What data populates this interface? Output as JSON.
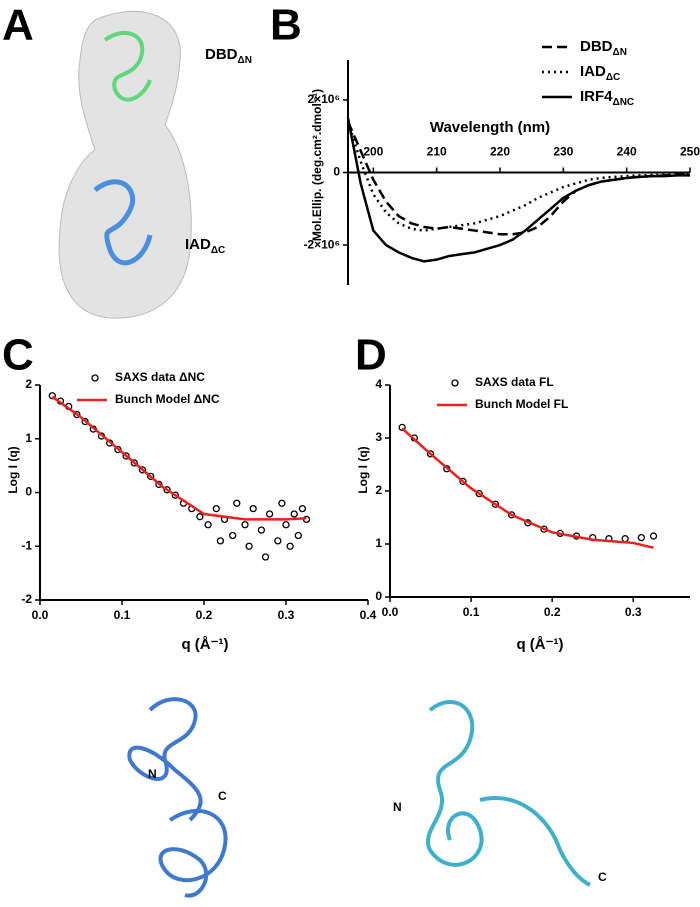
{
  "panel_letters": [
    "A",
    "B",
    "C",
    "D"
  ],
  "panel_a_labels": [
    {
      "text": "DBD",
      "sub": "ΔN"
    },
    {
      "text": "IAD",
      "sub": "ΔC"
    }
  ],
  "structure_labels": {
    "C": [
      "N",
      "C"
    ],
    "D": [
      "N",
      "C"
    ]
  },
  "chart_data": [
    {
      "type": "line",
      "x_label": "Wavelength (nm)",
      "y_label": "Mol.Ellip. (deg.cm².dmol⁻¹)",
      "xlim": [
        196,
        250
      ],
      "xticks": [
        200,
        210,
        220,
        230,
        240,
        250
      ],
      "ylim": [
        -3100000,
        3100000
      ],
      "yticks": [
        {
          "value": 2000000,
          "label": "2×10⁶"
        },
        0,
        {
          "value": -2000000,
          "label": "-2×10⁶"
        }
      ],
      "legend": "top-right",
      "series": [
        {
          "name": "DBD",
          "name_sub": "ΔN",
          "color": "#000000",
          "style": "dashed",
          "x": [
            196,
            198,
            200,
            202,
            204,
            206,
            208,
            210,
            212,
            214,
            216,
            218,
            220,
            222,
            224,
            226,
            228,
            230,
            232,
            234,
            236,
            238,
            240,
            242,
            244,
            246,
            248,
            250
          ],
          "values": [
            1400000.0,
            600000.0,
            -200000.0,
            -800000.0,
            -1200000.0,
            -1400000.0,
            -1500000.0,
            -1550000.0,
            -1500000.0,
            -1550000.0,
            -1600000.0,
            -1650000.0,
            -1700000.0,
            -1700000.0,
            -1650000.0,
            -1500000.0,
            -1200000.0,
            -800000.0,
            -500000.0,
            -350000.0,
            -250000.0,
            -200000.0,
            -150000.0,
            -120000.0,
            -100000.0,
            -80000.0,
            -60000.0,
            -50000.0
          ]
        },
        {
          "name": "IAD",
          "name_sub": "ΔC",
          "color": "#000000",
          "style": "dotted",
          "x": [
            196,
            198,
            200,
            202,
            204,
            206,
            208,
            210,
            212,
            214,
            216,
            218,
            220,
            222,
            224,
            226,
            228,
            230,
            232,
            234,
            236,
            238,
            240,
            242,
            244,
            246,
            248,
            250
          ],
          "values": [
            1400000.0,
            300000.0,
            -600000.0,
            -1100000.0,
            -1400000.0,
            -1550000.0,
            -1600000.0,
            -1550000.0,
            -1500000.0,
            -1450000.0,
            -1400000.0,
            -1300000.0,
            -1200000.0,
            -1050000.0,
            -900000.0,
            -700000.0,
            -550000.0,
            -400000.0,
            -300000.0,
            -200000.0,
            -150000.0,
            -120000.0,
            -100000.0,
            -80000.0,
            -70000.0,
            -60000.0,
            -50000.0,
            -50000.0
          ]
        },
        {
          "name": "IRF4",
          "name_sub": "ΔNC",
          "color": "#000000",
          "style": "solid",
          "x": [
            196,
            198,
            200,
            202,
            204,
            206,
            208,
            210,
            212,
            214,
            216,
            218,
            220,
            222,
            224,
            226,
            228,
            230,
            232,
            234,
            236,
            238,
            240,
            242,
            244,
            246,
            248,
            250
          ],
          "values": [
            1500000.0,
            -300000.0,
            -1600000.0,
            -2000000.0,
            -2200000.0,
            -2350000.0,
            -2450000.0,
            -2400000.0,
            -2300000.0,
            -2250000.0,
            -2200000.0,
            -2100000.0,
            -2000000.0,
            -1850000.0,
            -1600000.0,
            -1300000.0,
            -1000000.0,
            -700000.0,
            -500000.0,
            -350000.0,
            -250000.0,
            -200000.0,
            -150000.0,
            -120000.0,
            -100000.0,
            -100000.0,
            -80000.0,
            -80000.0
          ]
        }
      ]
    },
    {
      "type": "scatter",
      "x_label": "q (Å⁻¹)",
      "y_label": "Log I (q)",
      "xlim": [
        0,
        0.4
      ],
      "xticks": [
        {
          "value": 0,
          "label": "0.0"
        },
        0.1,
        0.2,
        0.3,
        0.4
      ],
      "ylim": [
        -2,
        2
      ],
      "yticks": [
        -2,
        -1,
        0,
        1,
        2
      ],
      "legend": "top-left",
      "series": [
        {
          "name": "SAXS data ΔNC",
          "color": "#000000",
          "style": "markers",
          "x": [
            0.015,
            0.025,
            0.035,
            0.045,
            0.055,
            0.065,
            0.075,
            0.085,
            0.095,
            0.105,
            0.115,
            0.125,
            0.135,
            0.145,
            0.155,
            0.165,
            0.175,
            0.185,
            0.195,
            0.205,
            0.215,
            0.22,
            0.225,
            0.235,
            0.24,
            0.25,
            0.255,
            0.26,
            0.27,
            0.275,
            0.28,
            0.29,
            0.295,
            0.3,
            0.305,
            0.31,
            0.315,
            0.32,
            0.325
          ],
          "values": [
            1.8,
            1.7,
            1.6,
            1.45,
            1.32,
            1.18,
            1.05,
            0.92,
            0.8,
            0.68,
            0.55,
            0.42,
            0.3,
            0.15,
            0.05,
            -0.05,
            -0.2,
            -0.3,
            -0.45,
            -0.6,
            -0.3,
            -0.9,
            -0.5,
            -0.8,
            -0.2,
            -0.6,
            -1.0,
            -0.3,
            -0.7,
            -1.2,
            -0.4,
            -0.9,
            -0.2,
            -0.6,
            -1.0,
            -0.4,
            -0.8,
            -0.3,
            -0.5
          ]
        },
        {
          "name": "Bunch Model ΔNC",
          "color": "#e8221c",
          "style": "solid",
          "x": [
            0.015,
            0.05,
            0.1,
            0.15,
            0.2,
            0.25,
            0.3,
            0.325
          ],
          "values": [
            1.78,
            1.4,
            0.75,
            0.1,
            -0.4,
            -0.5,
            -0.5,
            -0.48
          ]
        }
      ]
    },
    {
      "type": "scatter",
      "x_label": "q (Å⁻¹)",
      "y_label": "Log I (q)",
      "xlim": [
        0,
        0.37
      ],
      "xticks": [
        {
          "value": 0,
          "label": "0.0"
        },
        0.1,
        0.2,
        0.3
      ],
      "ylim": [
        0,
        4
      ],
      "yticks": [
        0,
        1,
        2,
        3,
        4
      ],
      "legend": "top-left",
      "series": [
        {
          "name": "SAXS data FL",
          "color": "#000000",
          "style": "markers",
          "x": [
            0.015,
            0.03,
            0.05,
            0.07,
            0.09,
            0.11,
            0.13,
            0.15,
            0.17,
            0.19,
            0.21,
            0.23,
            0.25,
            0.27,
            0.29,
            0.31,
            0.325
          ],
          "values": [
            3.2,
            3.0,
            2.7,
            2.42,
            2.18,
            1.95,
            1.75,
            1.55,
            1.4,
            1.28,
            1.2,
            1.15,
            1.12,
            1.1,
            1.1,
            1.12,
            1.15
          ]
        },
        {
          "name": "Bunch Model FL",
          "color": "#e8221c",
          "style": "solid",
          "x": [
            0.015,
            0.05,
            0.1,
            0.15,
            0.2,
            0.25,
            0.3,
            0.325
          ],
          "values": [
            3.18,
            2.7,
            2.05,
            1.55,
            1.22,
            1.08,
            1.02,
            0.93
          ]
        }
      ]
    }
  ]
}
